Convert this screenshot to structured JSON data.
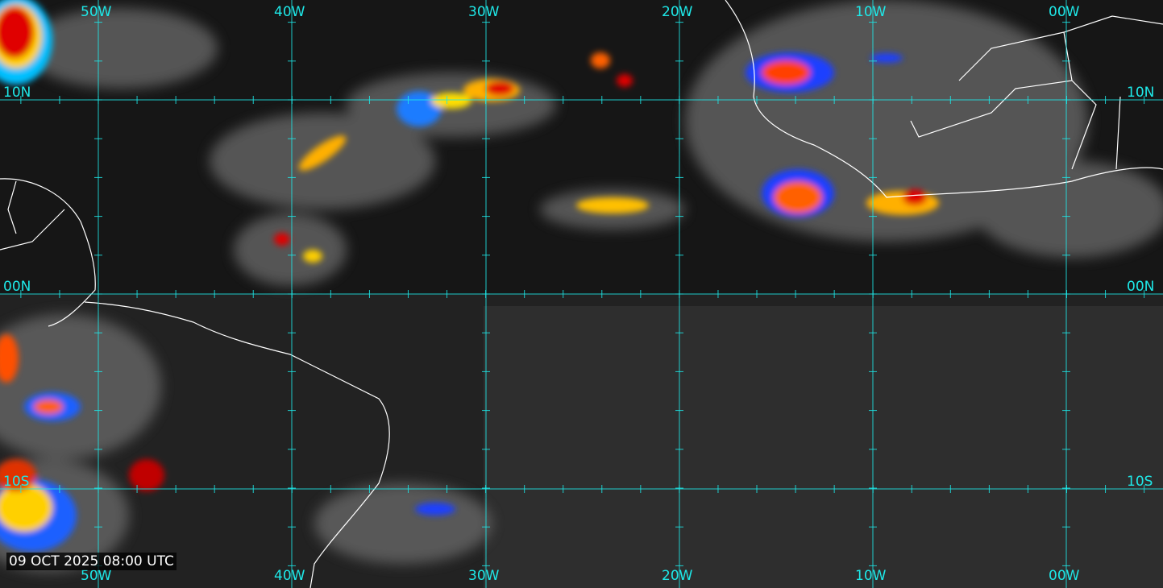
{
  "timestamp": "09 OCT 2025 08:00 UTC",
  "longitude_labels": [
    "50W",
    "40W",
    "30W",
    "20W",
    "10W",
    "00W"
  ],
  "latitude_labels": [
    "10N",
    "00N",
    "10S"
  ],
  "colors": {
    "grid": "#1ee8e8",
    "coastline": "#ffffff",
    "background": "#161616"
  },
  "imagery": "infrared satellite, enhanced convective tops (blue-green-yellow-red)"
}
